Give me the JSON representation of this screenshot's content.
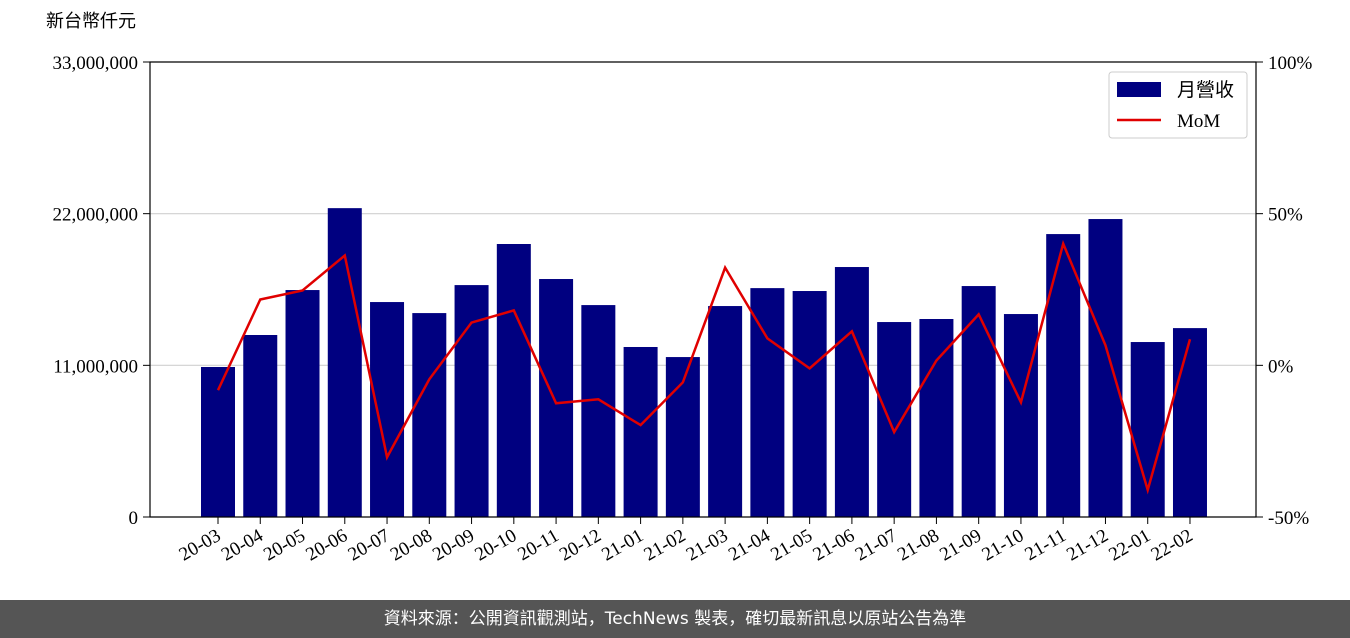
{
  "chart_data": {
    "type": "bar-line",
    "y_axis_label": "新台幣仟元",
    "categories": [
      "20-03",
      "20-04",
      "20-05",
      "20-06",
      "20-07",
      "20-08",
      "20-09",
      "20-10",
      "20-11",
      "20-12",
      "21-01",
      "21-02",
      "21-03",
      "21-04",
      "21-05",
      "21-06",
      "21-07",
      "21-08",
      "21-09",
      "21-10",
      "21-11",
      "21-12",
      "22-01",
      "22-02"
    ],
    "series": [
      {
        "name": "月營收",
        "type": "bar",
        "color": "#000080",
        "values": [
          10880000,
          13200000,
          16460000,
          22400000,
          15590000,
          14790000,
          16820000,
          19800000,
          17260000,
          15370000,
          12330000,
          11600000,
          15300000,
          16600000,
          16390000,
          18130000,
          14140000,
          14360000,
          16750000,
          14720000,
          20520000,
          21610000,
          12690000,
          13700000
        ]
      },
      {
        "name": "MoM",
        "type": "line",
        "axis": "y2",
        "color": "#e00000",
        "values": [
          -8.2,
          21.7,
          24.7,
          36.2,
          -30.3,
          -4.6,
          14.1,
          18.1,
          -12.5,
          -11.2,
          -19.7,
          -5.6,
          32.2,
          8.9,
          -1.0,
          11.2,
          -22.0,
          1.6,
          16.8,
          -12.2,
          40.1,
          6.6,
          -41.1,
          8.6
        ]
      }
    ],
    "ylim": [
      0,
      33000000
    ],
    "yticks": [
      {
        "value": 0,
        "label": "0"
      },
      {
        "value": 11000000,
        "label": "11,000,000"
      },
      {
        "value": 22000000,
        "label": "22,000,000"
      },
      {
        "value": 33000000,
        "label": "33,000,000"
      }
    ],
    "y2lim": [
      -50,
      100
    ],
    "y2ticks": [
      {
        "value": -50,
        "label": "-50%"
      },
      {
        "value": 0,
        "label": "0%"
      },
      {
        "value": 50,
        "label": "50%"
      },
      {
        "value": 100,
        "label": "100%"
      }
    ],
    "grid": true,
    "legend": "upper right"
  },
  "footer": "資料來源：公開資訊觀測站，TechNews 製表，確切最新訊息以原站公告為準"
}
